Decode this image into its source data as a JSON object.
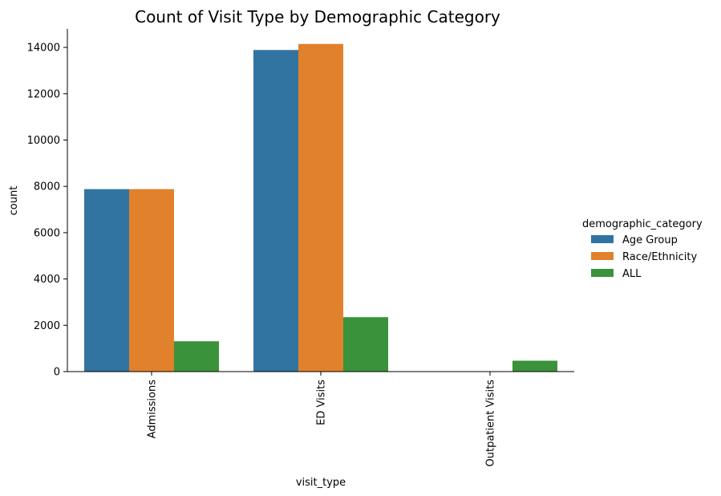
{
  "chart_data": {
    "type": "bar",
    "title": "Count of Visit Type by Demographic Category",
    "xlabel": "visit_type",
    "ylabel": "count",
    "categories": [
      "Admissions",
      "ED Visits",
      "Outpatient Visits"
    ],
    "series": [
      {
        "name": "Age Group",
        "color": "#3274a1",
        "values": [
          7880,
          13890,
          0
        ]
      },
      {
        "name": "Race/Ethnicity",
        "color": "#e1812c",
        "values": [
          7880,
          14150,
          0
        ]
      },
      {
        "name": "ALL",
        "color": "#3a923a",
        "values": [
          1310,
          2350,
          470
        ]
      }
    ],
    "ylim": [
      0,
      14800
    ],
    "yticks": [
      0,
      2000,
      4000,
      6000,
      8000,
      10000,
      12000,
      14000
    ],
    "legend": {
      "title": "demographic_category",
      "placement": "center-right"
    },
    "grid": false
  }
}
